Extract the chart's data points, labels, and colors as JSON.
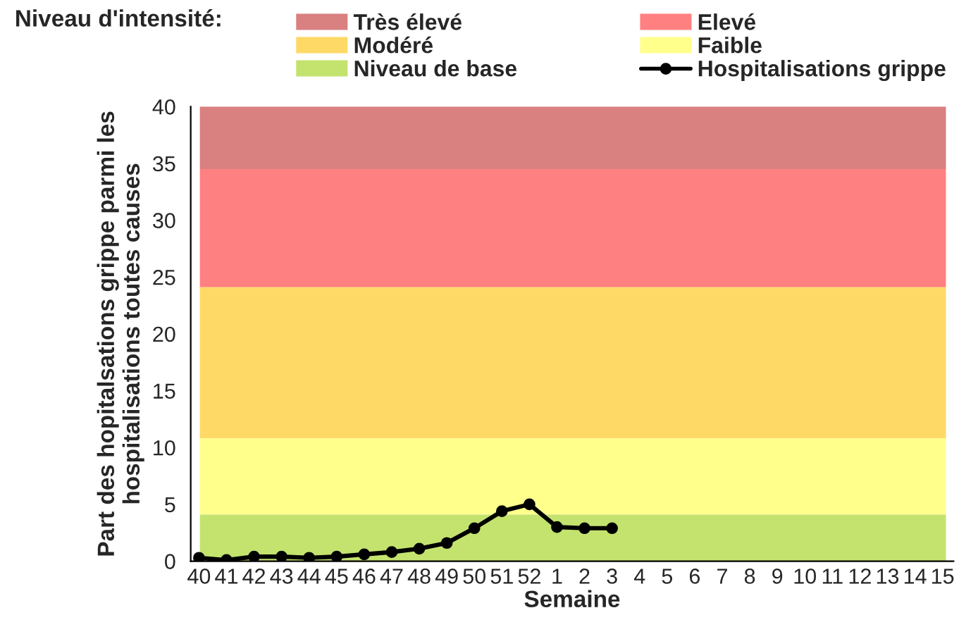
{
  "chart_data": {
    "type": "line",
    "legend_title": "Niveau d'intensité:",
    "xlabel": "Semaine",
    "ylabel": "Part des hopitalsations grippe parmi les\nhospitalisations toutes causes",
    "categories": [
      "40",
      "41",
      "42",
      "43",
      "44",
      "45",
      "46",
      "47",
      "48",
      "49",
      "50",
      "51",
      "52",
      "1",
      "2",
      "3",
      "4",
      "5",
      "6",
      "7",
      "8",
      "9",
      "10",
      "11",
      "12",
      "13",
      "14",
      "15"
    ],
    "series": [
      {
        "name": "Hospitalisations grippe",
        "color": "#000000",
        "values": [
          0.3,
          0.1,
          0.4,
          0.4,
          0.3,
          0.4,
          0.6,
          0.8,
          1.1,
          1.6,
          2.9,
          4.4,
          5.0,
          3.0,
          2.9,
          2.9,
          null,
          null,
          null,
          null,
          null,
          null,
          null,
          null,
          null,
          null,
          null,
          null
        ]
      }
    ],
    "bands": [
      {
        "axis": "y",
        "from": 34.5,
        "to": 40,
        "label": "Très élevé",
        "color": "#d98080"
      },
      {
        "axis": "y",
        "from": 24.1,
        "to": 34.5,
        "label": "Elevé",
        "color": "#ff8080"
      },
      {
        "axis": "y",
        "from": 10.8,
        "to": 24.1,
        "label": "Modéré",
        "color": "#ffd966"
      },
      {
        "axis": "y",
        "from": 4.1,
        "to": 10.8,
        "label": "Faible",
        "color": "#ffff8c"
      },
      {
        "axis": "y",
        "from": 0,
        "to": 4.1,
        "label": "Niveau de base",
        "color": "#c3e36e"
      }
    ],
    "ylim": [
      0,
      40
    ],
    "yticks": [
      0,
      5,
      10,
      15,
      20,
      25,
      30,
      35,
      40
    ],
    "grid": false,
    "legend": "top",
    "marker": "circle",
    "line_style": "solid"
  }
}
